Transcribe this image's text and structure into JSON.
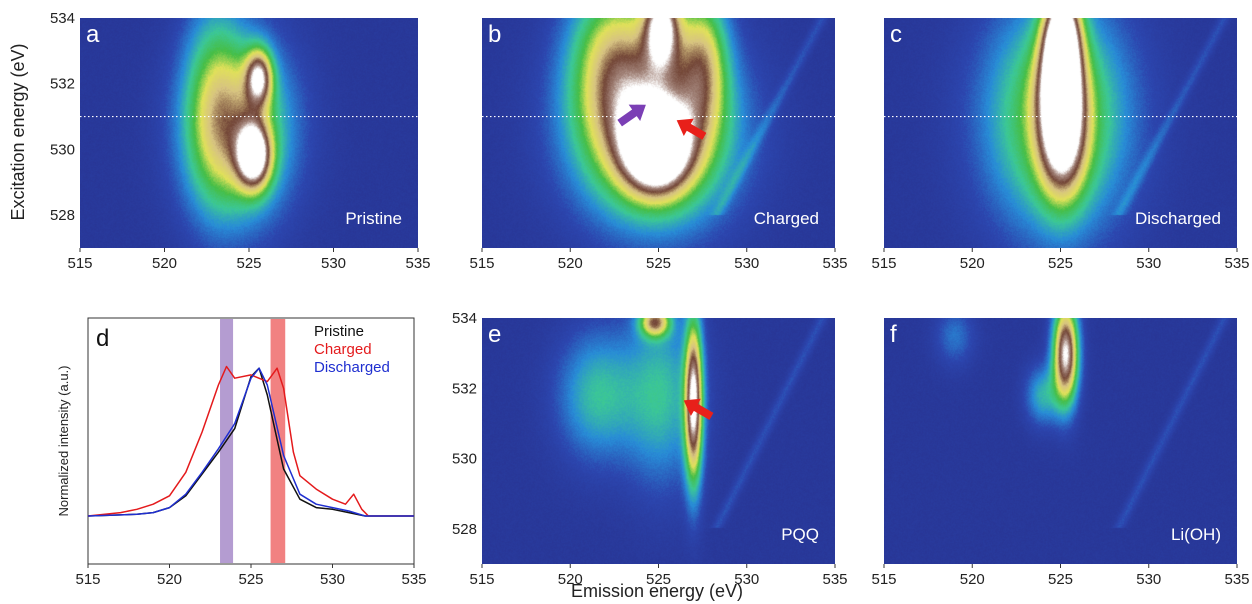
{
  "figure": {
    "xlabel": "Emission energy (eV)",
    "ylabel": "Excitation energy (eV)"
  },
  "chart_data": [
    {
      "panel": "a",
      "type": "heatmap",
      "label": "Pristine",
      "xlim": [
        515,
        535
      ],
      "ylim": [
        527,
        534
      ],
      "xticks": [
        515,
        520,
        525,
        530,
        535
      ],
      "yticks": [
        528,
        530,
        532,
        534
      ],
      "dotted_line_y": 531,
      "blobs": [
        {
          "cx": 524.4,
          "cy": 530.6,
          "sx": 2.2,
          "sy": 1.9,
          "amp": 1.0
        },
        {
          "cx": 525.3,
          "cy": 529.8,
          "sx": 0.7,
          "sy": 0.7,
          "amp": 1.6
        },
        {
          "cx": 525.6,
          "cy": 532.2,
          "sx": 0.55,
          "sy": 0.6,
          "amp": 1.3
        },
        {
          "cx": 523.0,
          "cy": 531.5,
          "sx": 1.3,
          "sy": 2.2,
          "amp": 0.55
        }
      ]
    },
    {
      "panel": "b",
      "type": "heatmap",
      "label": "Charged",
      "xlim": [
        515,
        535
      ],
      "ylim": [
        527,
        534
      ],
      "xticks": [
        515,
        520,
        525,
        530,
        535
      ],
      "yticks": [
        528,
        530,
        532,
        534
      ],
      "dotted_line_y": 531,
      "blobs": [
        {
          "cx": 524.8,
          "cy": 530.6,
          "sx": 3.0,
          "sy": 1.9,
          "amp": 1.4
        },
        {
          "cx": 524.9,
          "cy": 530.0,
          "sx": 1.3,
          "sy": 0.9,
          "amp": 1.7
        },
        {
          "cx": 525.2,
          "cy": 533.8,
          "sx": 0.7,
          "sy": 0.9,
          "amp": 1.5
        },
        {
          "cx": 522.5,
          "cy": 532.8,
          "sx": 1.8,
          "sy": 1.8,
          "amp": 0.9
        },
        {
          "cx": 527.5,
          "cy": 532.8,
          "sx": 1.0,
          "sy": 1.5,
          "amp": 0.9
        }
      ],
      "diagonal": true,
      "arrows": [
        {
          "color": "#7b3fb5",
          "x": 522.8,
          "y": 530.8,
          "dir": "up-right"
        },
        {
          "color": "#e8201a",
          "x": 527.6,
          "y": 530.4,
          "dir": "up-left"
        }
      ]
    },
    {
      "panel": "c",
      "type": "heatmap",
      "label": "Discharged",
      "xlim": [
        515,
        535
      ],
      "ylim": [
        527,
        534
      ],
      "xticks": [
        515,
        520,
        525,
        530,
        535
      ],
      "yticks": [
        528,
        530,
        532,
        534
      ],
      "dotted_line_y": 531,
      "blobs": [
        {
          "cx": 524.8,
          "cy": 531.0,
          "sx": 2.8,
          "sy": 2.4,
          "amp": 1.0
        },
        {
          "cx": 525.1,
          "cy": 530.6,
          "sx": 0.9,
          "sy": 1.4,
          "amp": 1.5
        },
        {
          "cx": 525.1,
          "cy": 533.6,
          "sx": 0.7,
          "sy": 1.0,
          "amp": 1.7
        },
        {
          "cx": 525.0,
          "cy": 532.2,
          "sx": 0.8,
          "sy": 1.0,
          "amp": 1.1
        }
      ],
      "diagonal": true
    },
    {
      "panel": "d",
      "type": "line",
      "xlim": [
        515,
        535
      ],
      "xticks": [
        515,
        520,
        525,
        530,
        535
      ],
      "ylabel": "Normalized intensity (a.u.)",
      "shaded_bands": [
        {
          "x0": 523.1,
          "x1": 523.9,
          "color": "#a78bc9"
        },
        {
          "x0": 526.2,
          "x1": 527.1,
          "color": "#ef6b6b"
        }
      ],
      "series": [
        {
          "name": "Pristine",
          "color": "#111111",
          "x": [
            515,
            518,
            519,
            520,
            521,
            522,
            523,
            524,
            525,
            525.5,
            526,
            527,
            528,
            529,
            530,
            531,
            532,
            535
          ],
          "y": [
            0.0,
            0.01,
            0.02,
            0.05,
            0.12,
            0.25,
            0.38,
            0.52,
            0.83,
            0.88,
            0.72,
            0.28,
            0.1,
            0.05,
            0.04,
            0.02,
            0.0,
            0.0
          ]
        },
        {
          "name": "Charged",
          "color": "#e41a1c",
          "x": [
            515,
            517,
            518,
            519,
            520,
            521,
            522,
            523,
            523.5,
            524,
            525,
            526,
            526.6,
            527,
            527.6,
            528,
            529,
            530,
            530.8,
            531.3,
            531.8,
            532.2,
            535
          ],
          "y": [
            0.0,
            0.02,
            0.04,
            0.07,
            0.12,
            0.26,
            0.5,
            0.78,
            0.89,
            0.82,
            0.84,
            0.8,
            0.88,
            0.76,
            0.38,
            0.24,
            0.16,
            0.1,
            0.07,
            0.13,
            0.04,
            0.0,
            0.0
          ]
        },
        {
          "name": "Discharged",
          "color": "#1f2fd0",
          "x": [
            515,
            518,
            519,
            520,
            521,
            522,
            523,
            524,
            525,
            525.5,
            526,
            527,
            528,
            529,
            530,
            531,
            532,
            535
          ],
          "y": [
            0.0,
            0.01,
            0.02,
            0.05,
            0.13,
            0.26,
            0.4,
            0.55,
            0.82,
            0.88,
            0.78,
            0.36,
            0.13,
            0.07,
            0.05,
            0.03,
            0.0,
            0.0
          ]
        }
      ]
    },
    {
      "panel": "e",
      "type": "heatmap",
      "label": "PQQ",
      "xlim": [
        515,
        535
      ],
      "ylim": [
        527,
        534
      ],
      "xticks": [
        515,
        520,
        525,
        530,
        535
      ],
      "yticks": [
        528,
        530,
        532,
        534
      ],
      "blobs": [
        {
          "cx": 521.5,
          "cy": 531.8,
          "sx": 1.6,
          "sy": 1.3,
          "amp": 0.55
        },
        {
          "cx": 525.2,
          "cy": 531.8,
          "sx": 1.5,
          "sy": 1.8,
          "amp": 0.55
        },
        {
          "cx": 527.0,
          "cy": 531.6,
          "sx": 0.35,
          "sy": 1.6,
          "amp": 1.7
        },
        {
          "cx": 524.8,
          "cy": 533.9,
          "sx": 0.6,
          "sy": 0.3,
          "amp": 1.2
        }
      ],
      "diagonal": true,
      "arrows": [
        {
          "color": "#e8201a",
          "x": 528.0,
          "y": 531.2,
          "dir": "up-left"
        }
      ]
    },
    {
      "panel": "f",
      "type": "heatmap",
      "label": "Li(OH)",
      "xlim": [
        515,
        535
      ],
      "xticks": [
        515,
        520,
        525,
        530,
        535
      ],
      "ylim": [
        527,
        534
      ],
      "blobs": [
        {
          "cx": 525.3,
          "cy": 533.0,
          "sx": 0.5,
          "sy": 1.0,
          "amp": 1.8
        },
        {
          "cx": 524.0,
          "cy": 531.8,
          "sx": 0.7,
          "sy": 0.6,
          "amp": 0.5
        },
        {
          "cx": 519.0,
          "cy": 533.5,
          "sx": 0.8,
          "sy": 0.6,
          "amp": 0.3
        }
      ],
      "diagonal": true
    }
  ]
}
